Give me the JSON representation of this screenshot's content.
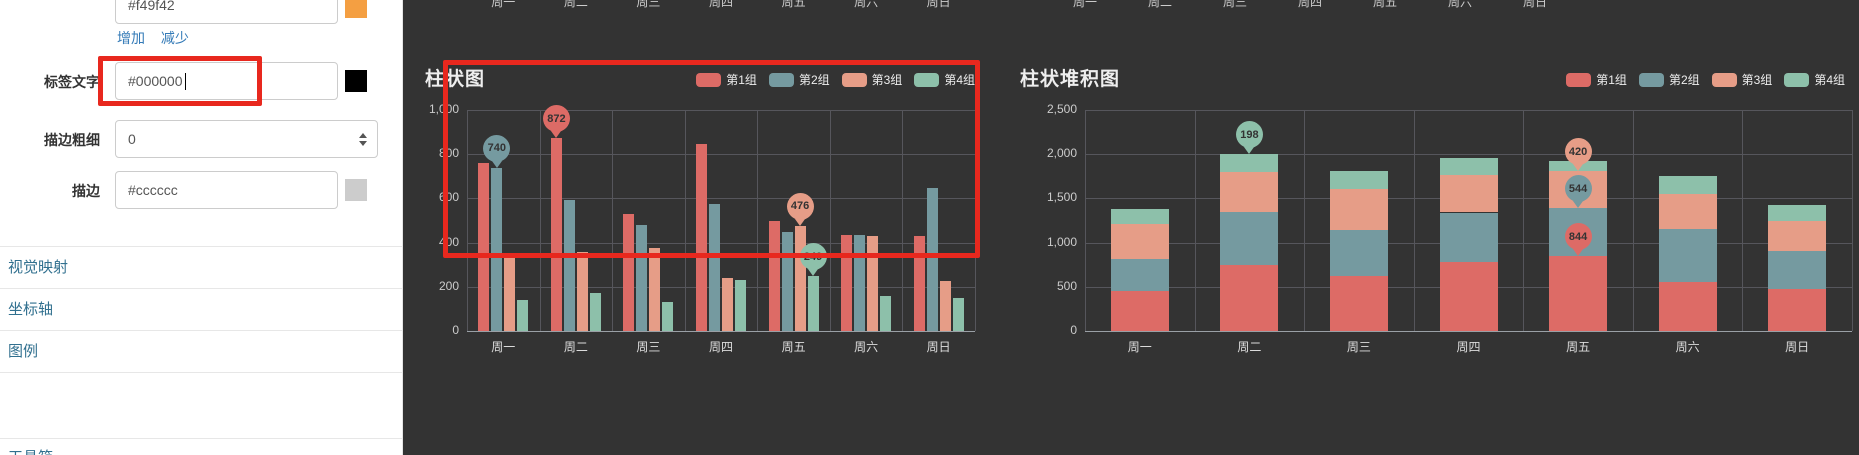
{
  "panel": {
    "color_item": {
      "value": "#f49f42",
      "swatch": "#f49f42"
    },
    "actions": {
      "add": "增加",
      "remove": "减少"
    },
    "fields": [
      {
        "label": "标签文字",
        "value": "#000000",
        "swatch": "#000000"
      },
      {
        "label": "描边粗细",
        "value": "0"
      },
      {
        "label": "描边",
        "value": "#cccccc",
        "swatch": "#cccccc"
      }
    ],
    "sections": [
      {
        "label": "视觉映射"
      },
      {
        "label": "坐标轴"
      },
      {
        "label": "图例"
      },
      {
        "label": "工具箱"
      }
    ]
  },
  "preview": {
    "background": "#333333",
    "top_axis_labels": [
      "周一",
      "周二",
      "周三",
      "周四",
      "周五",
      "周六",
      "周日"
    ]
  },
  "annotations": {
    "highlight_color": "#e8281e"
  },
  "chart_data": [
    {
      "type": "bar",
      "title": "柱状图",
      "categories": [
        "周一",
        "周二",
        "周三",
        "周四",
        "周五",
        "周六",
        "周日"
      ],
      "series": [
        {
          "name": "第1组",
          "color": "#dd6b66",
          "values": [
            760,
            872,
            529,
            846,
            497,
            434,
            430
          ]
        },
        {
          "name": "第2组",
          "color": "#759aa0",
          "values": [
            740,
            592,
            480,
            574,
            448,
            434,
            647
          ]
        },
        {
          "name": "第3组",
          "color": "#e69d87",
          "values": [
            335,
            357,
            375,
            240,
            476,
            430,
            226
          ]
        },
        {
          "name": "第4组",
          "color": "#8dc0aa",
          "values": [
            140,
            172,
            131,
            230,
            249,
            158,
            149
          ]
        }
      ],
      "ylim": [
        0,
        1000
      ],
      "yticks": [
        "1,000",
        "800",
        "600",
        "400",
        "200",
        "0"
      ],
      "grid": true,
      "legend_position": "top-right",
      "point_labels": [
        {
          "series": 1,
          "category": 0,
          "text": "740"
        },
        {
          "series": 0,
          "category": 1,
          "text": "872"
        },
        {
          "series": 2,
          "category": 4,
          "text": "476"
        },
        {
          "series": 3,
          "category": 4,
          "text": "249"
        }
      ]
    },
    {
      "type": "stacked-bar",
      "title": "柱状堆积图",
      "categories": [
        "周一",
        "周二",
        "周三",
        "周四",
        "周五",
        "周六",
        "周日"
      ],
      "series": [
        {
          "name": "第1组",
          "color": "#dd6b66",
          "values": [
            450,
            750,
            620,
            780,
            844,
            560,
            480
          ]
        },
        {
          "name": "第2组",
          "color": "#759aa0",
          "values": [
            360,
            600,
            520,
            560,
            544,
            600,
            430
          ]
        },
        {
          "name": "第3组",
          "color": "#e69d87",
          "values": [
            400,
            450,
            470,
            420,
            420,
            390,
            330
          ]
        },
        {
          "name": "第4组",
          "color": "#8dc0aa",
          "values": [
            170,
            198,
            200,
            200,
            120,
            200,
            190
          ]
        }
      ],
      "ylim": [
        0,
        2500
      ],
      "yticks": [
        "2,500",
        "2,000",
        "1,500",
        "1,000",
        "500",
        "0"
      ],
      "grid": true,
      "legend_position": "top-right",
      "point_labels": [
        {
          "series": 3,
          "category": 1,
          "text": "198"
        },
        {
          "series": 2,
          "category": 4,
          "text": "420"
        },
        {
          "series": 1,
          "category": 4,
          "text": "544"
        },
        {
          "series": 0,
          "category": 4,
          "text": "844"
        }
      ]
    }
  ]
}
